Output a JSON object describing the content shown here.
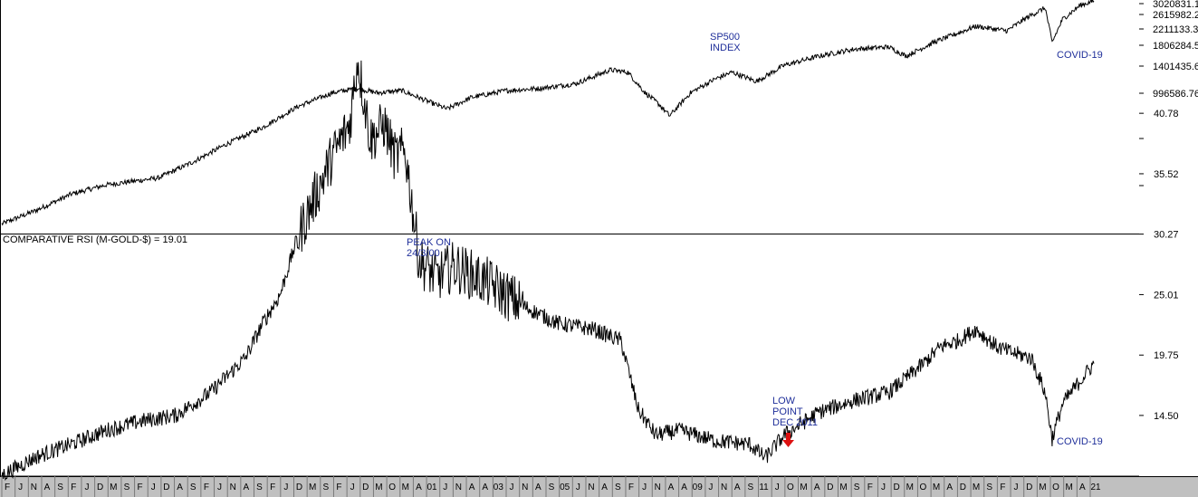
{
  "chart_data": [
    {
      "type": "line",
      "panel": "top",
      "y_ticks": [
        "3020831.1",
        "2615982.2",
        "2211133.3",
        "1806284.5",
        "1401435.6",
        "996586.76"
      ],
      "annotations": [
        "SP500\nINDEX",
        "COVID-19"
      ],
      "grid": false,
      "series": [
        {
          "x_time": [
            1990.0,
            1991.0,
            1992.0,
            1993.0,
            1994.5,
            1995.5,
            1996.5,
            1997.5,
            1998.5,
            1999.5,
            2000.2,
            2000.8,
            2001.5,
            2002.3,
            2002.8,
            2003.5,
            2004.5,
            2005.5,
            2006.5,
            2007.5,
            2008.0,
            2008.5,
            2008.9,
            2009.2,
            2009.8,
            2010.5,
            2011.0,
            2011.7,
            2012.5,
            2013.5,
            2014.5,
            2015.5,
            2016.0,
            2016.8,
            2017.5,
            2018.0,
            2018.9,
            2019.5,
            2020.0,
            2020.2,
            2020.5,
            2021.0,
            2021.4
          ],
          "y_level": [
            0.03,
            0.09,
            0.16,
            0.2,
            0.23,
            0.3,
            0.38,
            0.45,
            0.54,
            0.6,
            0.62,
            0.6,
            0.61,
            0.56,
            0.53,
            0.58,
            0.61,
            0.62,
            0.64,
            0.7,
            0.69,
            0.6,
            0.55,
            0.5,
            0.6,
            0.66,
            0.69,
            0.65,
            0.72,
            0.76,
            0.79,
            0.8,
            0.76,
            0.82,
            0.86,
            0.89,
            0.87,
            0.93,
            0.97,
            0.82,
            0.92,
            0.98,
            1.0
          ]
        }
      ]
    },
    {
      "type": "line",
      "panel": "bottom",
      "title": "COMPARATIVE RSI (M-GOLD-$) = 19.01",
      "y_ticks": [
        40.78,
        35.52,
        30.27,
        25.01,
        19.75,
        14.5
      ],
      "annotations": [
        "PEAK ON\n24/3/00",
        "LOW\nPOINT\nDEC 2011",
        "COVID-19"
      ],
      "grid": false,
      "series": [
        {
          "x_time": [
            1990.0,
            1991.0,
            1992.0,
            1993.0,
            1994.0,
            1995.0,
            1996.0,
            1997.0,
            1997.5,
            1998.0,
            1998.5,
            1999.0,
            1999.5,
            2000.0,
            2000.23,
            2000.6,
            2001.0,
            2001.3,
            2001.6,
            2002.0,
            2002.5,
            2003.0,
            2004.0,
            2005.0,
            2006.0,
            2007.0,
            2007.8,
            2008.3,
            2008.8,
            2009.5,
            2010.5,
            2011.5,
            2011.95,
            2012.5,
            2013.5,
            2014.5,
            2015.5,
            2016.5,
            2017.0,
            2017.5,
            2018.0,
            2018.6,
            2019.0,
            2019.6,
            2020.0,
            2020.2,
            2020.5,
            2021.0,
            2021.4
          ],
          "y_rsi": [
            9.3,
            10.9,
            12.0,
            13.2,
            14.0,
            14.5,
            16.5,
            19.5,
            22.5,
            25.0,
            30.0,
            33.5,
            37.0,
            39.8,
            45.5,
            38.5,
            39.8,
            37.0,
            37.5,
            28.0,
            26.5,
            27.5,
            26.0,
            24.0,
            22.5,
            22.0,
            21.0,
            15.0,
            12.8,
            13.2,
            12.3,
            12.0,
            10.8,
            12.8,
            14.8,
            15.8,
            16.5,
            19.0,
            20.5,
            21.0,
            22.0,
            20.5,
            20.0,
            19.5,
            16.5,
            12.5,
            15.5,
            17.5,
            19.01
          ]
        }
      ]
    }
  ],
  "x_axis": {
    "tick_labels": [
      "F",
      "J",
      "N",
      "A",
      "S",
      "F",
      "J",
      "D",
      "M",
      "S",
      "F",
      "J",
      "D",
      "A",
      "S",
      "F",
      "J",
      "N",
      "A",
      "S",
      "F",
      "J",
      "D",
      "M",
      "S",
      "F",
      "J",
      "D",
      "M",
      "O",
      "M",
      "A",
      "01",
      "J",
      "N",
      "A",
      "A",
      "03",
      "J",
      "N",
      "A",
      "S",
      "05",
      "J",
      "N",
      "A",
      "S",
      "F",
      "J",
      "N",
      "A",
      "A",
      "09",
      "J",
      "N",
      "A",
      "S",
      "11",
      "J",
      "O",
      "M",
      "A",
      "D",
      "M",
      "S",
      "F",
      "J",
      "D",
      "M",
      "O",
      "M",
      "A",
      "D",
      "M",
      "S",
      "F",
      "J",
      "D",
      "M",
      "O",
      "M",
      "A",
      "21"
    ]
  },
  "colors": {
    "line": "#000000",
    "annotation": "#1f2f9a",
    "arrow": "#dd1111",
    "axis_bg": "#c0c0c0",
    "frame": "#000000"
  }
}
